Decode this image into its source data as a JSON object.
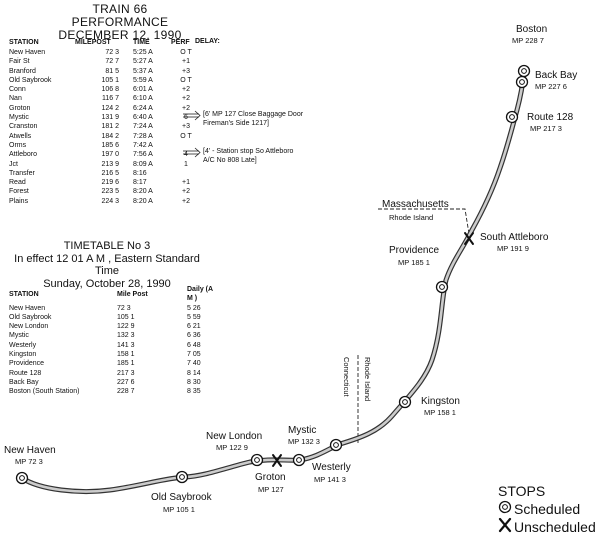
{
  "performance": {
    "title_line1": "TRAIN 66 PERFORMANCE",
    "title_line2": "DECEMBER 12, 1990",
    "headers": {
      "station": "STATION",
      "milepost": "MILEPOST",
      "time": "TIME",
      "perf": "PERF",
      "delay": "DELAY:"
    },
    "rows": [
      {
        "station": "New Haven",
        "mp": "72 3",
        "time": "5:25 A",
        "perf": "O T"
      },
      {
        "station": "Fair St",
        "mp": "72 7",
        "time": "5:27 A",
        "perf": "+1"
      },
      {
        "station": "Branford",
        "mp": "81 5",
        "time": "5:37 A",
        "perf": "+3"
      },
      {
        "station": "Old Saybrook",
        "mp": "105 1",
        "time": "5:59 A",
        "perf": "O T"
      },
      {
        "station": "Conn",
        "mp": "106 8",
        "time": "6:01 A",
        "perf": "+2"
      },
      {
        "station": "Nan",
        "mp": "116 7",
        "time": "6:10 A",
        "perf": "+2"
      },
      {
        "station": "Groton",
        "mp": "124 2",
        "time": "6:24 A",
        "perf": "+2"
      },
      {
        "station": "Mystic",
        "mp": "131 9",
        "time": "6:40 A",
        "perf": "6"
      },
      {
        "station": "Cranston",
        "mp": "181 2",
        "time": "7:24 A",
        "perf": "+3"
      },
      {
        "station": "Atwells",
        "mp": "184 2",
        "time": "7:28 A",
        "perf": "O T"
      },
      {
        "station": "Orms",
        "mp": "185 6",
        "time": "7:42 A",
        "perf": ""
      },
      {
        "station": "Attleboro",
        "mp": "197 0",
        "time": "7:56 A",
        "perf": "4"
      },
      {
        "station": "Jct",
        "mp": "213 9",
        "time": "8:09 A",
        "perf": "1"
      },
      {
        "station": "Transfer",
        "mp": "216 5",
        "time": "8:16",
        "perf": ""
      },
      {
        "station": "Read",
        "mp": "219 6",
        "time": "8:17",
        "perf": "+1"
      },
      {
        "station": "Forest",
        "mp": "223 5",
        "time": "8:20 A",
        "perf": "+2"
      },
      {
        "station": "Plains",
        "mp": "224 3",
        "time": "8:20 A",
        "perf": "+2"
      }
    ],
    "note1_line1": "[6'  MP 127   Close Baggage Door",
    "note1_line2": "Fireman's Side 1217]",
    "note2_line1": "[4' - Station stop So  Attleboro",
    "note2_line2": "A/C No  808 Late]"
  },
  "timetable": {
    "title_line1": "TIMETABLE No  3",
    "title_line2": "In effect 12 01 A M , Eastern Standard Time",
    "title_line3": "Sunday, October 28, 1990",
    "headers": {
      "station": "STATION",
      "mp": "Mile Post",
      "daily": "Daily (A M )"
    },
    "rows": [
      {
        "station": "New Haven",
        "mp": "72 3",
        "daily": "5 26"
      },
      {
        "station": "Old Saybrook",
        "mp": "105 1",
        "daily": "5 59"
      },
      {
        "station": "New London",
        "mp": "122 9",
        "daily": "6 21"
      },
      {
        "station": "Mystic",
        "mp": "132 3",
        "daily": "6 36"
      },
      {
        "station": "Westerly",
        "mp": "141 3",
        "daily": "6 48"
      },
      {
        "station": "Kingston",
        "mp": "158 1",
        "daily": "7 05"
      },
      {
        "station": "Providence",
        "mp": "185 1",
        "daily": "7 40"
      },
      {
        "station": "Route 128",
        "mp": "217 3",
        "daily": "8 14"
      },
      {
        "station": "Back Bay",
        "mp": "227 6",
        "daily": "8 30"
      },
      {
        "station": "Boston (South Station)",
        "mp": "228 7",
        "daily": "8 35"
      }
    ]
  },
  "map": {
    "stations": {
      "boston": {
        "name": "Boston",
        "mp": "MP 228 7"
      },
      "back_bay": {
        "name": "Back Bay",
        "mp": "MP 227 6"
      },
      "route128": {
        "name": "Route 128",
        "mp": "MP 217 3"
      },
      "south_attleboro": {
        "name": "South Attleboro",
        "mp": "MP 191 9"
      },
      "providence": {
        "name": "Providence",
        "mp": "MP 185 1"
      },
      "kingston": {
        "name": "Kingston",
        "mp": "MP 158 1"
      },
      "westerly": {
        "name": "Westerly",
        "mp": "MP 141 3"
      },
      "mystic": {
        "name": "Mystic",
        "mp": "MP 132 3"
      },
      "groton": {
        "name": "Groton",
        "mp": "MP 127"
      },
      "new_london": {
        "name": "New London",
        "mp": "MP 122 9"
      },
      "old_saybrook": {
        "name": "Old Saybrook",
        "mp": "MP 105 1"
      },
      "new_haven": {
        "name": "New Haven",
        "mp": "MP 72 3"
      }
    },
    "borders": {
      "ma": "Massachusetts",
      "ri_top": "Rhode Island",
      "ri_side": "Rhode Island",
      "ct_side": "Connecticut"
    }
  },
  "legend": {
    "title": "STOPS",
    "scheduled": "Scheduled",
    "unscheduled": "Unscheduled"
  }
}
